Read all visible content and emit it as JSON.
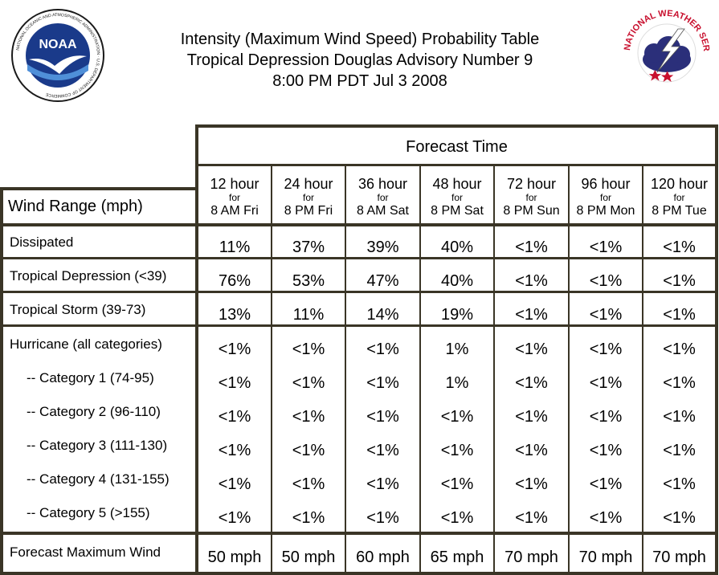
{
  "header": {
    "title_lines": [
      "Intensity (Maximum Wind Speed) Probability Table",
      "Tropical Depression Douglas Advisory Number 9",
      "8:00 PM PDT Jul 3 2008"
    ],
    "left_logo_text": "NOAA",
    "left_logo_ring_text": "NATIONAL OCEANIC AND ATMOSPHERIC ADMINISTRATION · U.S. DEPARTMENT OF COMMERCE",
    "right_logo_ring_text": "NATIONAL WEATHER SERVICE"
  },
  "colors": {
    "grid_line": "#3a3526",
    "noaa_blue": "#1a3a8a",
    "noaa_light_blue": "#4f8fd8",
    "nws_red": "#c8102e",
    "nws_cloud": "#2b2f7a"
  },
  "table": {
    "forecast_time_label": "Forecast Time",
    "wind_range_label": "Wind Range (mph)",
    "columns": [
      {
        "hour": "12 hour",
        "for": "for",
        "time": "8 AM Fri"
      },
      {
        "hour": "24 hour",
        "for": "for",
        "time": "8 PM Fri"
      },
      {
        "hour": "36 hour",
        "for": "for",
        "time": "8 AM Sat"
      },
      {
        "hour": "48 hour",
        "for": "for",
        "time": "8 PM Sat"
      },
      {
        "hour": "72 hour",
        "for": "for",
        "time": "8 PM Sun"
      },
      {
        "hour": "96 hour",
        "for": "for",
        "time": "8 PM Mon"
      },
      {
        "hour": "120 hour",
        "for": "for",
        "time": "8 PM Tue"
      }
    ],
    "rows": [
      {
        "label": "Dissipated",
        "values": [
          "11%",
          "37%",
          "39%",
          "40%",
          "<1%",
          "<1%",
          "<1%"
        ]
      },
      {
        "label": "Tropical Depression (<39)",
        "values": [
          "76%",
          "53%",
          "47%",
          "40%",
          "<1%",
          "<1%",
          "<1%"
        ]
      },
      {
        "label": "Tropical Storm (39-73)",
        "values": [
          "13%",
          "11%",
          "14%",
          "19%",
          "<1%",
          "<1%",
          "<1%"
        ]
      },
      {
        "label": "Hurricane (all categories)",
        "values": [
          "<1%",
          "<1%",
          "<1%",
          "1%",
          "<1%",
          "<1%",
          "<1%"
        ]
      },
      {
        "label": "-- Category 1 (74-95)",
        "values": [
          "<1%",
          "<1%",
          "<1%",
          "1%",
          "<1%",
          "<1%",
          "<1%"
        ]
      },
      {
        "label": "-- Category 2 (96-110)",
        "values": [
          "<1%",
          "<1%",
          "<1%",
          "<1%",
          "<1%",
          "<1%",
          "<1%"
        ]
      },
      {
        "label": "-- Category 3 (111-130)",
        "values": [
          "<1%",
          "<1%",
          "<1%",
          "<1%",
          "<1%",
          "<1%",
          "<1%"
        ]
      },
      {
        "label": "-- Category 4 (131-155)",
        "values": [
          "<1%",
          "<1%",
          "<1%",
          "<1%",
          "<1%",
          "<1%",
          "<1%"
        ]
      },
      {
        "label": "-- Category 5 (>155)",
        "values": [
          "<1%",
          "<1%",
          "<1%",
          "<1%",
          "<1%",
          "<1%",
          "<1%"
        ]
      },
      {
        "label": "Forecast Maximum Wind",
        "values": [
          "50 mph",
          "50 mph",
          "60 mph",
          "65 mph",
          "70 mph",
          "70 mph",
          "70 mph"
        ]
      }
    ]
  }
}
